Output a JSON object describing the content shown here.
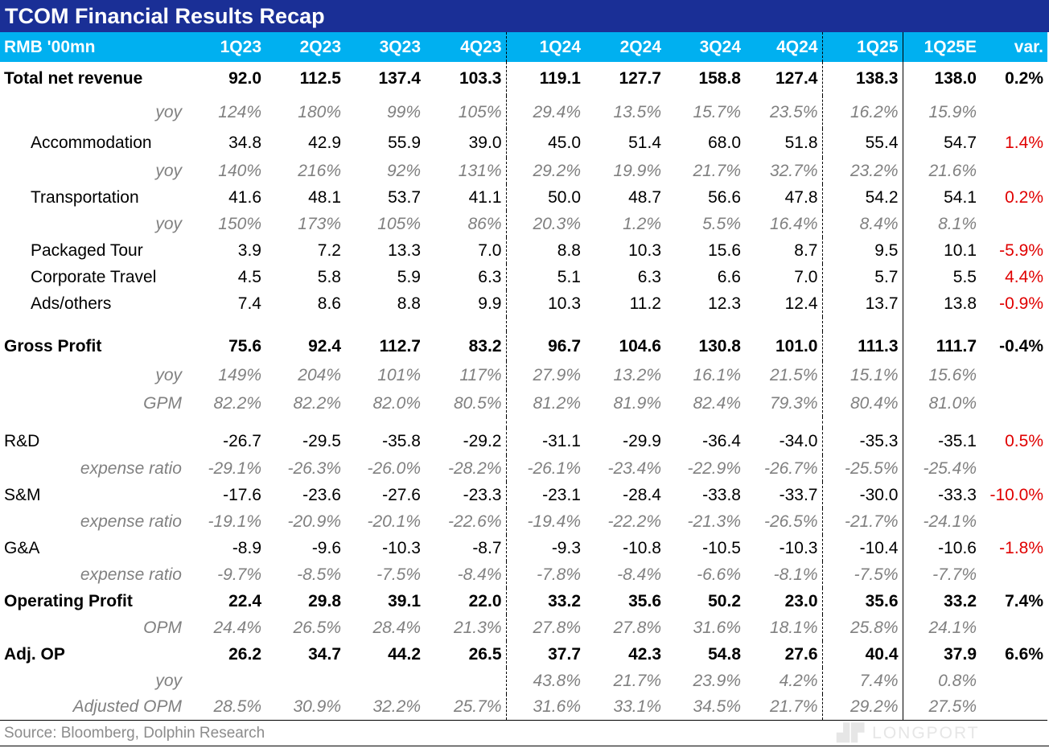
{
  "title": "TCOM Financial Results Recap",
  "header": [
    "RMB '00mn",
    "1Q23",
    "2Q23",
    "3Q23",
    "4Q23",
    "1Q24",
    "2Q24",
    "3Q24",
    "4Q24",
    "1Q25",
    "1Q25E",
    "var."
  ],
  "rows": [
    {
      "type": "bold",
      "cells": [
        "Total net revenue",
        "92.0",
        "112.5",
        "137.4",
        "103.3",
        "119.1",
        "127.7",
        "158.8",
        "127.4",
        "138.3",
        "138.0",
        "0.2%"
      ]
    },
    {
      "type": "ratio",
      "cells": [
        "yoy",
        "124%",
        "180%",
        "99%",
        "105%",
        "29.4%",
        "13.5%",
        "15.7%",
        "23.5%",
        "16.2%",
        "15.9%",
        ""
      ]
    },
    {
      "type": "sub",
      "cells": [
        "Accommodation",
        "34.8",
        "42.9",
        "55.9",
        "39.0",
        "45.0",
        "51.4",
        "68.0",
        "51.8",
        "55.4",
        "54.7",
        "1.4%"
      ]
    },
    {
      "type": "ratio",
      "cells": [
        "yoy",
        "140%",
        "216%",
        "92%",
        "131%",
        "29.2%",
        "19.9%",
        "21.7%",
        "32.7%",
        "23.2%",
        "21.6%",
        ""
      ]
    },
    {
      "type": "sub",
      "cells": [
        "Transportation",
        "41.6",
        "48.1",
        "53.7",
        "41.1",
        "50.0",
        "48.7",
        "56.6",
        "47.8",
        "54.2",
        "54.1",
        "0.2%"
      ]
    },
    {
      "type": "ratio",
      "cells": [
        "yoy",
        "150%",
        "173%",
        "105%",
        "86%",
        "20.3%",
        "1.2%",
        "5.5%",
        "16.4%",
        "8.4%",
        "8.1%",
        ""
      ]
    },
    {
      "type": "sub",
      "cells": [
        "Packaged Tour",
        "3.9",
        "7.2",
        "13.3",
        "7.0",
        "8.8",
        "10.3",
        "15.6",
        "8.7",
        "9.5",
        "10.1",
        "-5.9%"
      ]
    },
    {
      "type": "sub",
      "cells": [
        "Corporate Travel",
        "4.5",
        "5.8",
        "5.9",
        "6.3",
        "5.1",
        "6.3",
        "6.6",
        "7.0",
        "5.7",
        "5.5",
        "4.4%"
      ]
    },
    {
      "type": "sub",
      "cells": [
        "Ads/others",
        "7.4",
        "8.6",
        "8.8",
        "9.9",
        "10.3",
        "11.2",
        "12.3",
        "12.4",
        "13.7",
        "13.8",
        "-0.9%"
      ]
    },
    {
      "type": "spacer",
      "cells": [
        "",
        "",
        "",
        "",
        "",
        "",
        "",
        "",
        "",
        "",
        "",
        ""
      ]
    },
    {
      "type": "bold",
      "cells": [
        "Gross Profit",
        "75.6",
        "92.4",
        "112.7",
        "83.2",
        "96.7",
        "104.6",
        "130.8",
        "101.0",
        "111.3",
        "111.7",
        "-0.4%"
      ]
    },
    {
      "type": "ratio",
      "cells": [
        "yoy",
        "149%",
        "204%",
        "101%",
        "117%",
        "27.9%",
        "13.2%",
        "16.1%",
        "21.5%",
        "15.1%",
        "15.6%",
        ""
      ]
    },
    {
      "type": "ratio",
      "cells": [
        "GPM",
        "82.2%",
        "82.2%",
        "82.0%",
        "80.5%",
        "81.2%",
        "81.9%",
        "82.4%",
        "79.3%",
        "80.4%",
        "81.0%",
        ""
      ]
    },
    {
      "type": "spacer",
      "cells": [
        "",
        "",
        "",
        "",
        "",
        "",
        "",
        "",
        "",
        "",
        "",
        ""
      ]
    },
    {
      "type": "normal",
      "cells": [
        "R&D",
        "-26.7",
        "-29.5",
        "-35.8",
        "-29.2",
        "-31.1",
        "-29.9",
        "-36.4",
        "-34.0",
        "-35.3",
        "-35.1",
        "0.5%"
      ]
    },
    {
      "type": "ratio",
      "cells": [
        "expense ratio",
        "-29.1%",
        "-26.3%",
        "-26.0%",
        "-28.2%",
        "-26.1%",
        "-23.4%",
        "-22.9%",
        "-26.7%",
        "-25.5%",
        "-25.4%",
        ""
      ]
    },
    {
      "type": "normal",
      "cells": [
        "S&M",
        "-17.6",
        "-23.6",
        "-27.6",
        "-23.3",
        "-23.1",
        "-28.4",
        "-33.8",
        "-33.7",
        "-30.0",
        "-33.3",
        "-10.0%"
      ]
    },
    {
      "type": "ratio",
      "cells": [
        "expense ratio",
        "-19.1%",
        "-20.9%",
        "-20.1%",
        "-22.6%",
        "-19.4%",
        "-22.2%",
        "-21.3%",
        "-26.5%",
        "-21.7%",
        "-24.1%",
        ""
      ]
    },
    {
      "type": "normal",
      "cells": [
        "G&A",
        "-8.9",
        "-9.6",
        "-10.3",
        "-8.7",
        "-9.3",
        "-10.8",
        "-10.5",
        "-10.3",
        "-10.4",
        "-10.6",
        "-1.8%"
      ]
    },
    {
      "type": "ratio",
      "cells": [
        "expense ratio",
        "-9.7%",
        "-8.5%",
        "-7.5%",
        "-8.4%",
        "-7.8%",
        "-8.4%",
        "-6.6%",
        "-8.1%",
        "-7.5%",
        "-7.7%",
        ""
      ]
    },
    {
      "type": "bold",
      "cells": [
        "Operating Profit",
        "22.4",
        "29.8",
        "39.1",
        "22.0",
        "33.2",
        "35.6",
        "50.2",
        "23.0",
        "35.6",
        "33.2",
        "7.4%"
      ]
    },
    {
      "type": "ratio",
      "cells": [
        "OPM",
        "24.4%",
        "26.5%",
        "28.4%",
        "21.3%",
        "27.8%",
        "27.8%",
        "31.6%",
        "18.1%",
        "25.8%",
        "24.1%",
        ""
      ]
    },
    {
      "type": "bold",
      "cells": [
        "Adj. OP",
        "26.2",
        "34.7",
        "44.2",
        "26.5",
        "37.7",
        "42.3",
        "54.8",
        "27.6",
        "40.4",
        "37.9",
        "6.6%"
      ]
    },
    {
      "type": "ratio",
      "cells": [
        "yoy",
        "",
        "",
        "",
        "",
        "43.8%",
        "21.7%",
        "23.9%",
        "4.2%",
        "7.4%",
        "0.8%",
        ""
      ]
    },
    {
      "type": "ratio",
      "cells": [
        "Adjusted OPM",
        "28.5%",
        "30.9%",
        "32.2%",
        "25.7%",
        "31.6%",
        "33.1%",
        "34.5%",
        "21.7%",
        "29.2%",
        "27.5%",
        ""
      ]
    }
  ],
  "source": "Source:  Bloomberg, Dolphin Research",
  "watermark": "LONGPORT",
  "colors": {
    "title_bg": "#1a2f96",
    "header_bg": "#00b0f0",
    "variance": "#e00000",
    "ratio": "#808080"
  }
}
